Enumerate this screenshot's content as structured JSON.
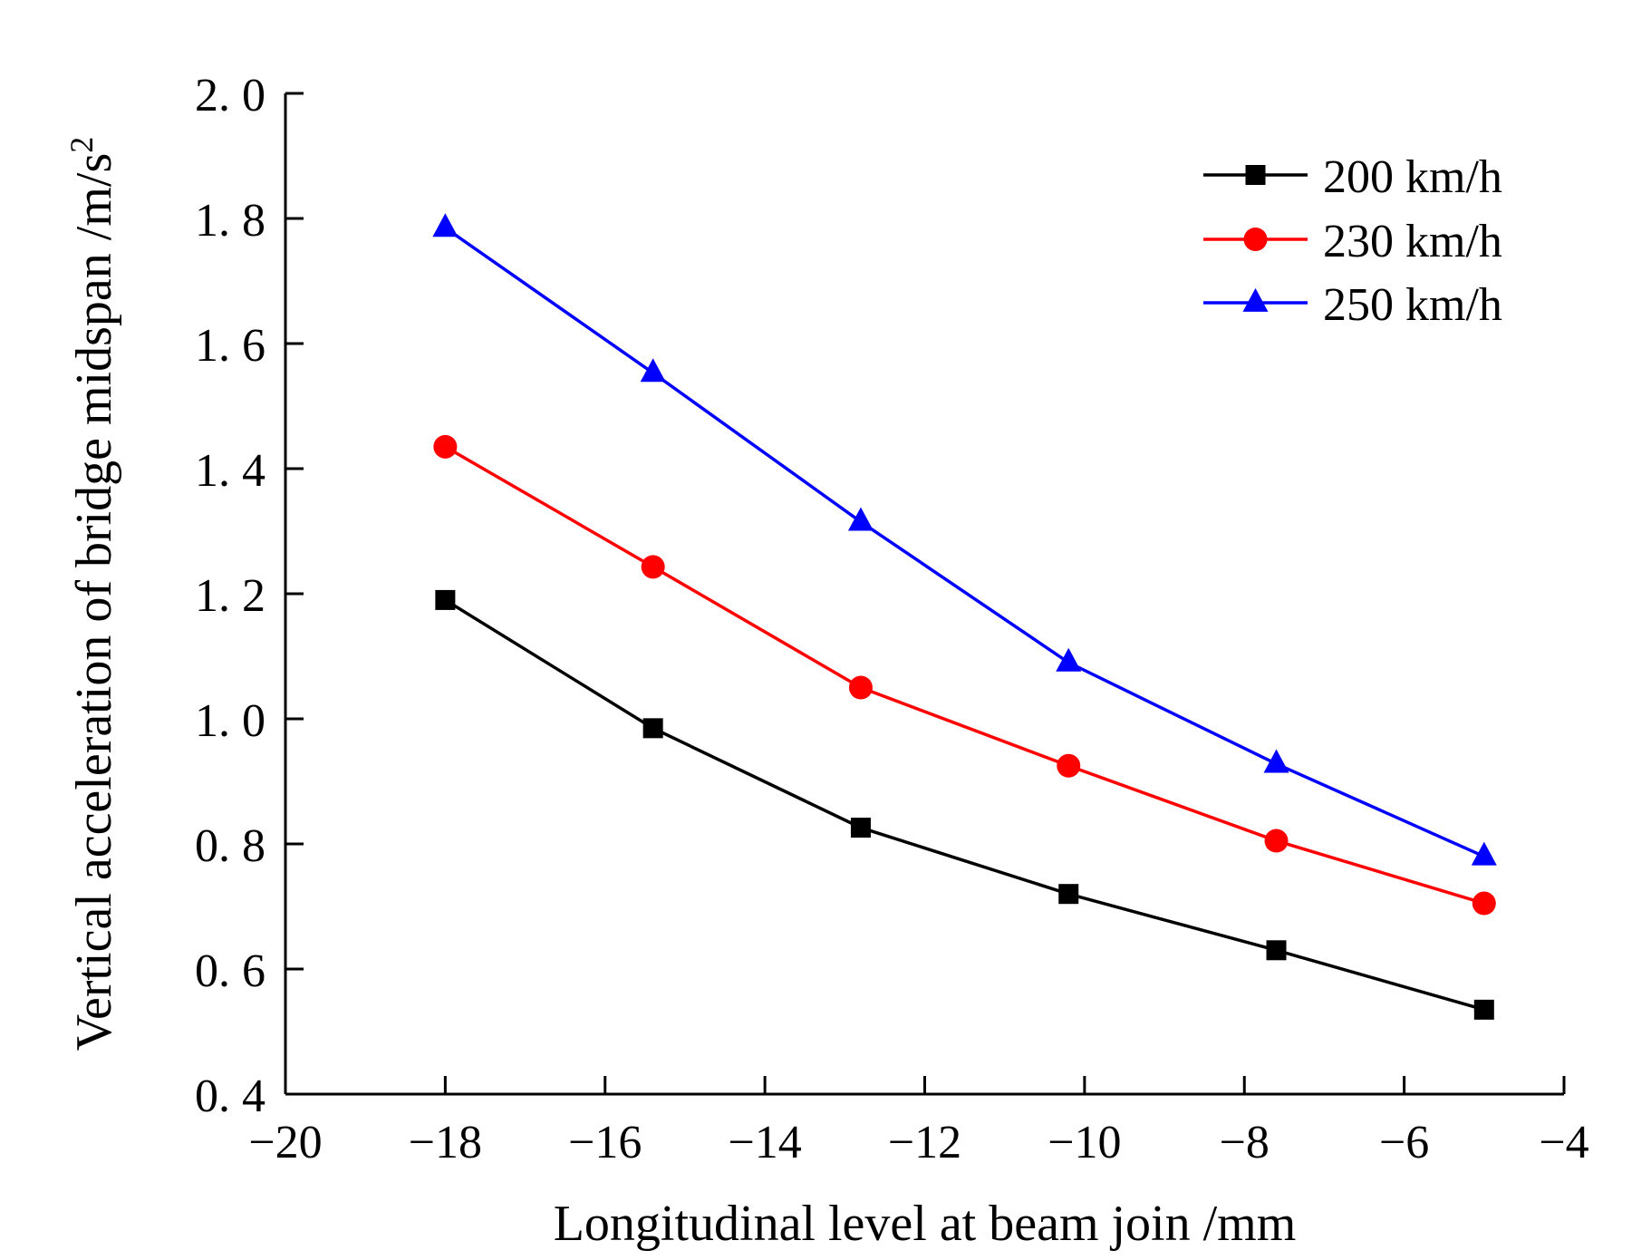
{
  "chart_data": {
    "type": "line",
    "title": "",
    "xlabel": "Longitudinal level at beam join /mm",
    "ylabel": "Vertical acceleration of bridge midspan /m/s",
    "ylabel_superscript": "2",
    "xlim": [
      -20,
      -4
    ],
    "ylim": [
      0.4,
      2.0
    ],
    "x_ticks": [
      -20,
      -18,
      -16,
      -14,
      -12,
      -10,
      -8,
      -6,
      -4
    ],
    "x_tick_labels": [
      "−20",
      "−18",
      "−16",
      "−14",
      "−12",
      "−10",
      "−8",
      "−6",
      "−4"
    ],
    "y_ticks": [
      0.4,
      0.6,
      0.8,
      1.0,
      1.2,
      1.4,
      1.6,
      1.8,
      2.0
    ],
    "y_tick_labels": [
      "0. 4",
      "0. 6",
      "0. 8",
      "1. 0",
      "1. 2",
      "1. 4",
      "1. 6",
      "1. 8",
      "2. 0"
    ],
    "grid": false,
    "legend_position": "top-right",
    "series": [
      {
        "name": "200 km/h",
        "color": "#000000",
        "marker": "square",
        "x": [
          -18.0,
          -15.4,
          -12.8,
          -10.2,
          -7.6,
          -5.0
        ],
        "values": [
          1.19,
          0.985,
          0.826,
          0.72,
          0.63,
          0.535
        ]
      },
      {
        "name": "230 km/h",
        "color": "#ff0000",
        "marker": "circle",
        "x": [
          -18.0,
          -15.4,
          -12.8,
          -10.2,
          -7.6,
          -5.0
        ],
        "values": [
          1.435,
          1.243,
          1.05,
          0.925,
          0.805,
          0.705
        ]
      },
      {
        "name": "250 km/h",
        "color": "#0000ff",
        "marker": "triangle",
        "x": [
          -18.0,
          -15.4,
          -12.8,
          -10.2,
          -7.6,
          -5.0
        ],
        "values": [
          1.785,
          1.553,
          1.315,
          1.09,
          0.928,
          0.78
        ]
      }
    ]
  }
}
